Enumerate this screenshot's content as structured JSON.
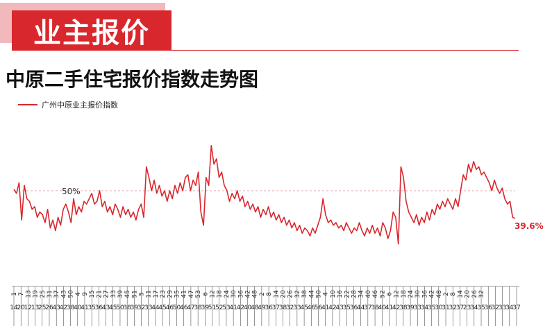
{
  "header": {
    "title": "业主报价"
  },
  "chart_data": {
    "type": "line",
    "title": "中原二手住宅报价指数走势图",
    "legend_position": "top-left",
    "grid": false,
    "ylim": [
      0.2,
      0.8
    ],
    "series": [
      {
        "name": "广州中原业主报价指数",
        "color": "#d8272d",
        "values": [
          0.505,
          0.49,
          0.53,
          0.39,
          0.52,
          0.47,
          0.46,
          0.43,
          0.44,
          0.4,
          0.42,
          0.41,
          0.38,
          0.43,
          0.36,
          0.39,
          0.35,
          0.4,
          0.37,
          0.43,
          0.45,
          0.42,
          0.38,
          0.47,
          0.41,
          0.44,
          0.42,
          0.46,
          0.45,
          0.47,
          0.49,
          0.45,
          0.46,
          0.5,
          0.44,
          0.46,
          0.42,
          0.44,
          0.41,
          0.45,
          0.43,
          0.4,
          0.44,
          0.41,
          0.43,
          0.4,
          0.42,
          0.39,
          0.43,
          0.45,
          0.4,
          0.59,
          0.55,
          0.5,
          0.54,
          0.49,
          0.52,
          0.48,
          0.5,
          0.46,
          0.5,
          0.47,
          0.52,
          0.49,
          0.53,
          0.5,
          0.55,
          0.56,
          0.5,
          0.54,
          0.52,
          0.57,
          0.42,
          0.37,
          0.55,
          0.52,
          0.67,
          0.6,
          0.62,
          0.55,
          0.57,
          0.52,
          0.5,
          0.46,
          0.49,
          0.47,
          0.5,
          0.46,
          0.48,
          0.44,
          0.46,
          0.43,
          0.45,
          0.42,
          0.44,
          0.4,
          0.43,
          0.41,
          0.44,
          0.4,
          0.42,
          0.39,
          0.41,
          0.38,
          0.4,
          0.37,
          0.39,
          0.36,
          0.38,
          0.35,
          0.37,
          0.34,
          0.36,
          0.35,
          0.33,
          0.36,
          0.34,
          0.37,
          0.4,
          0.47,
          0.41,
          0.38,
          0.39,
          0.37,
          0.38,
          0.36,
          0.37,
          0.35,
          0.38,
          0.36,
          0.34,
          0.36,
          0.35,
          0.38,
          0.35,
          0.33,
          0.36,
          0.34,
          0.37,
          0.34,
          0.36,
          0.33,
          0.38,
          0.36,
          0.32,
          0.35,
          0.42,
          0.4,
          0.3,
          0.59,
          0.55,
          0.46,
          0.42,
          0.4,
          0.38,
          0.41,
          0.37,
          0.4,
          0.38,
          0.42,
          0.39,
          0.43,
          0.41,
          0.45,
          0.43,
          0.46,
          0.44,
          0.47,
          0.45,
          0.43,
          0.47,
          0.44,
          0.5,
          0.56,
          0.54,
          0.6,
          0.57,
          0.61,
          0.58,
          0.59,
          0.56,
          0.57,
          0.55,
          0.53,
          0.5,
          0.54,
          0.51,
          0.49,
          0.51,
          0.47,
          0.45,
          0.46,
          0.4,
          0.396
        ]
      }
    ],
    "reference_line": {
      "value": 0.5,
      "label": "50%"
    },
    "last_value_label": "39.6%",
    "x_tick_labels_top": [
      "1",
      "7",
      "13",
      "19",
      "25",
      "31",
      "37",
      "43",
      "50",
      "4",
      "9",
      "15",
      "21",
      "27",
      "33",
      "39",
      "45",
      "51",
      "5",
      "11",
      "17",
      "23",
      "29",
      "35",
      "41",
      "47",
      "53",
      "6",
      "12",
      "18",
      "24",
      "30",
      "36",
      "42",
      "48",
      "2",
      "8",
      "14",
      "20",
      "26",
      "32",
      "38",
      "44",
      "50",
      "4",
      "10",
      "16",
      "22",
      "28",
      "34",
      "40",
      "46",
      "52",
      "6",
      "12",
      "18",
      "24",
      "30",
      "36",
      "42",
      "48",
      "2",
      "8",
      "14",
      "20",
      "26",
      "32"
    ],
    "x_tick_labels_bottom": [
      "14",
      "20",
      "12",
      "13",
      "25",
      "26",
      "43",
      "42",
      "38",
      "40",
      "41",
      "35",
      "36",
      "43",
      "45",
      "50",
      "38",
      "39",
      "32",
      "33",
      "44",
      "45",
      "46",
      "50",
      "46",
      "47",
      "38",
      "39",
      "51",
      "52",
      "53",
      "41",
      "42",
      "40",
      "48",
      "49",
      "36",
      "37",
      "38",
      "32",
      "33",
      "45",
      "46",
      "56",
      "41",
      "42",
      "43",
      "35",
      "36",
      "44",
      "37",
      "38",
      "40",
      "41",
      "42",
      "38",
      "39",
      "33",
      "34",
      "35",
      "30",
      "31",
      "32",
      "37",
      "23",
      "34",
      "35",
      "36",
      "32",
      "33",
      "34",
      "37"
    ]
  }
}
